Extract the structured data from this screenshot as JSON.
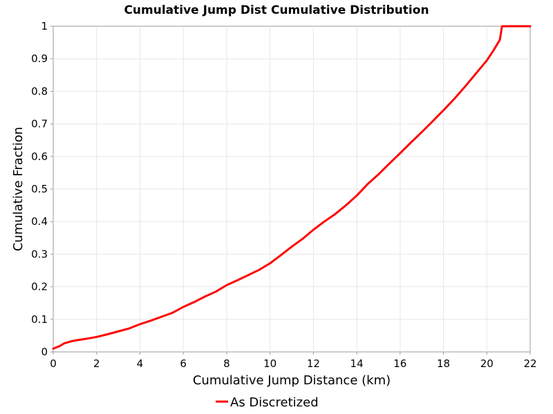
{
  "chart_data": {
    "type": "line",
    "title": "Cumulative Jump Dist Cumulative Distribution",
    "xlabel": "Cumulative Jump Distance (km)",
    "ylabel": "Cumulative Fraction",
    "xlim": [
      0,
      22
    ],
    "ylim": [
      0,
      1
    ],
    "xticks": [
      0,
      2,
      4,
      6,
      8,
      10,
      12,
      14,
      16,
      18,
      20,
      22
    ],
    "yticks": [
      0,
      0.1,
      0.2,
      0.3,
      0.4,
      0.5,
      0.6,
      0.7,
      0.8,
      0.9,
      1
    ],
    "grid": true,
    "legend_position": "bottom",
    "series": [
      {
        "name": "As Discretized",
        "color": "#ff0000",
        "x": [
          0,
          0.3,
          0.5,
          0.8,
          1.0,
          1.5,
          2.0,
          2.5,
          3.0,
          3.5,
          4.0,
          4.5,
          5.0,
          5.5,
          6.0,
          6.5,
          7.0,
          7.5,
          8.0,
          8.5,
          9.0,
          9.5,
          10.0,
          10.5,
          11.0,
          11.5,
          12.0,
          12.5,
          13.0,
          13.5,
          14.0,
          14.5,
          15.0,
          15.5,
          16.0,
          16.5,
          17.0,
          17.5,
          18.0,
          18.5,
          19.0,
          19.5,
          20.0,
          20.3,
          20.6,
          20.7,
          22.0
        ],
        "y": [
          0.01,
          0.018,
          0.026,
          0.032,
          0.035,
          0.04,
          0.046,
          0.054,
          0.063,
          0.072,
          0.085,
          0.096,
          0.108,
          0.12,
          0.138,
          0.153,
          0.17,
          0.185,
          0.205,
          0.22,
          0.236,
          0.252,
          0.272,
          0.297,
          0.323,
          0.347,
          0.375,
          0.4,
          0.423,
          0.45,
          0.48,
          0.515,
          0.545,
          0.578,
          0.61,
          0.643,
          0.675,
          0.708,
          0.742,
          0.777,
          0.815,
          0.855,
          0.895,
          0.925,
          0.958,
          1.0,
          1.0
        ]
      }
    ]
  }
}
